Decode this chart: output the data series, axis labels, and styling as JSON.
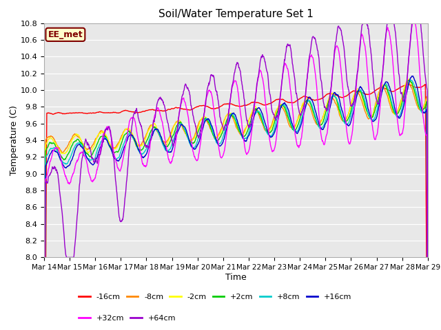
{
  "title": "Soil/Water Temperature Set 1",
  "xlabel": "Time",
  "ylabel": "Temperature (C)",
  "ylim": [
    8.0,
    10.8
  ],
  "yticks": [
    8.0,
    8.2,
    8.4,
    8.6,
    8.8,
    9.0,
    9.2,
    9.4,
    9.6,
    9.8,
    10.0,
    10.2,
    10.4,
    10.6,
    10.8
  ],
  "xtick_labels": [
    "Mar 14",
    "Mar 15",
    "Mar 16",
    "Mar 17",
    "Mar 18",
    "Mar 19",
    "Mar 20",
    "Mar 21",
    "Mar 22",
    "Mar 23",
    "Mar 24",
    "Mar 25",
    "Mar 26",
    "Mar 27",
    "Mar 28",
    "Mar 29"
  ],
  "legend_entries": [
    "-16cm",
    "-8cm",
    "-2cm",
    "+2cm",
    "+8cm",
    "+16cm",
    "+32cm",
    "+64cm"
  ],
  "colors": [
    "#ff0000",
    "#ff8800",
    "#ffff00",
    "#00cc00",
    "#00cccc",
    "#0000cc",
    "#ff00ff",
    "#9900cc"
  ],
  "annotation_text": "EE_met",
  "annotation_color": "#800000",
  "annotation_bg": "#ffffcc",
  "fig_facecolor": "#ffffff",
  "plot_bg_color": "#e8e8e8",
  "n_points": 1440,
  "days": 15
}
